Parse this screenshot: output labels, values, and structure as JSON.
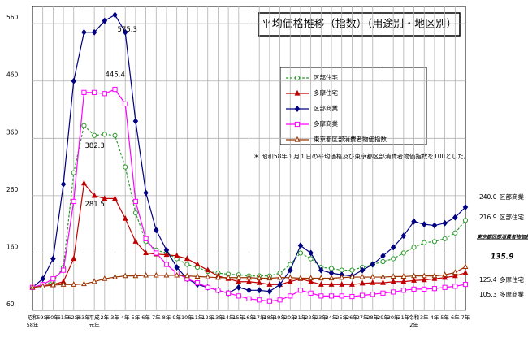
{
  "chart_data": {
    "type": "line",
    "title": "平均価格推移（指数）（用途別・地区別）",
    "annotation": "＊ 昭和58年１月１日の平均価格及び東京都区部消費者物価指数を100とした。",
    "categories": [
      "昭和",
      "59年",
      "60年",
      "61年",
      "62年",
      "63年",
      "平成",
      "2年",
      "3年",
      "4年",
      "5年",
      "6年",
      "7年",
      "8年",
      "9年",
      "10年",
      "11年",
      "12年",
      "13年",
      "14年",
      "15年",
      "16年",
      "17年",
      "18年",
      "19年",
      "20年",
      "21年",
      "22年",
      "23年",
      "24年",
      "25年",
      "26年",
      "27年",
      "28年",
      "29年",
      "30年",
      "31年",
      "令和",
      "3年",
      "4年",
      "5年",
      "6年",
      "7年"
    ],
    "category_sublabels": [
      "58年",
      null,
      null,
      null,
      null,
      null,
      "元年",
      null,
      null,
      null,
      null,
      null,
      null,
      null,
      null,
      null,
      null,
      null,
      null,
      null,
      null,
      null,
      null,
      null,
      null,
      null,
      null,
      null,
      null,
      null,
      null,
      null,
      null,
      null,
      null,
      null,
      null,
      "2年",
      null,
      null,
      null,
      null,
      null
    ],
    "ylim": [
      60,
      590
    ],
    "yticks": [
      60,
      160,
      260,
      360,
      460,
      560
    ],
    "grid": true,
    "series": [
      {
        "name": "区部住宅",
        "color": "#2e9a2e",
        "marker": "circle",
        "dashed": true,
        "values": [
          100,
          105,
          110,
          135,
          300,
          382.3,
          365,
          367,
          365,
          310,
          230,
          180,
          165,
          160,
          150,
          140,
          135,
          128,
          125,
          123,
          122,
          120,
          120,
          120,
          125,
          140,
          160,
          150,
          135,
          133,
          130,
          130,
          135,
          140,
          145,
          150,
          160,
          170,
          178,
          180,
          185,
          195,
          216.9
        ]
      },
      {
        "name": "多摩住宅",
        "color": "#c00000",
        "marker": "triangle",
        "dashed": false,
        "values": [
          100,
          103,
          105,
          110,
          150,
          281.5,
          260,
          255,
          255,
          220,
          180,
          160,
          158,
          157,
          155,
          150,
          140,
          130,
          120,
          115,
          110,
          110,
          108,
          105,
          105,
          110,
          115,
          110,
          105,
          105,
          105,
          105,
          107,
          108,
          108,
          110,
          110,
          112,
          113,
          115,
          117,
          120,
          125.4
        ]
      },
      {
        "name": "区部商業",
        "color": "#000080",
        "marker": "diamond",
        "dashed": false,
        "values": [
          100,
          115,
          150,
          280,
          460,
          545,
          545,
          565,
          575.3,
          545,
          390,
          265,
          200,
          165,
          135,
          115,
          105,
          100,
          95,
          90,
          100,
          95,
          95,
          93,
          105,
          130,
          173,
          160,
          130,
          125,
          122,
          120,
          130,
          140,
          155,
          170,
          190,
          215,
          210,
          208,
          212,
          222,
          240.0
        ],
        "value_labels": [
          null,
          null,
          null,
          null,
          null,
          null,
          null,
          null,
          "575.3",
          null,
          null,
          null,
          null,
          null,
          null,
          null,
          null,
          null,
          null,
          null,
          null,
          null,
          null,
          null,
          null,
          null,
          null,
          null,
          null,
          null,
          null,
          null,
          null,
          null,
          null,
          null,
          null,
          null,
          null,
          null,
          null,
          null,
          "240.0"
        ]
      },
      {
        "name": "多摩商業",
        "color": "#ff00ff",
        "marker": "square",
        "dashed": false,
        "values": [
          100,
          105,
          115,
          130,
          250,
          440,
          440,
          438,
          445.4,
          420,
          250,
          185,
          160,
          140,
          125,
          115,
          108,
          100,
          95,
          90,
          85,
          80,
          78,
          76,
          78,
          85,
          95,
          90,
          85,
          85,
          85,
          84,
          86,
          88,
          90,
          92,
          95,
          97,
          97,
          98,
          100,
          102,
          105.3
        ]
      },
      {
        "name": "東京都区部消費者物価指数",
        "color": "#993300",
        "marker": "open-triangle",
        "dashed": false,
        "values": [
          100,
          102,
          104,
          105,
          105,
          106,
          110,
          115,
          118,
          120,
          120,
          121,
          121,
          121,
          121,
          120,
          119,
          118,
          117,
          117,
          117,
          117,
          116,
          116,
          117,
          117,
          116,
          116,
          116,
          116,
          117,
          118,
          118,
          118,
          118,
          119,
          119,
          120,
          120,
          120,
          122,
          126,
          135.9
        ]
      }
    ]
  }
}
